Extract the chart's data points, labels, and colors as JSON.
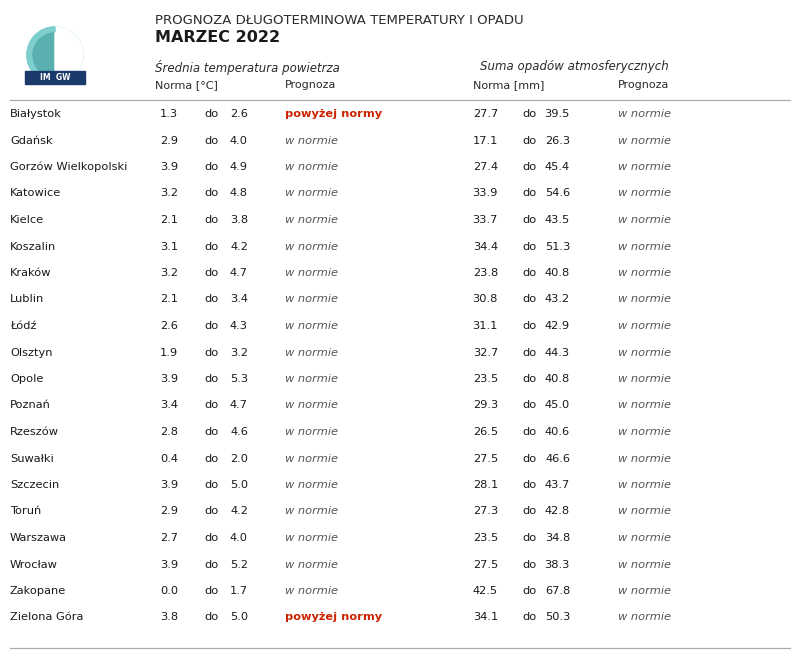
{
  "title_line1": "PROGNOZA DŁUGOTERMINOWA TEMPERATURY I OPADU",
  "title_line2": "MARZEC 2022",
  "header_temp": "Średnia temperatura powietrza",
  "header_precip": "Suma opadów atmosferycznych",
  "col_norma": "Norma [°C]",
  "col_prognoza": "Prognoza",
  "col_norma_mm": "Norma [mm]",
  "col_prognoza2": "Prognoza",
  "cities": [
    "Białystok",
    "Gdańsk",
    "Gorzów Wielkopolski",
    "Katowice",
    "Kielce",
    "Koszalin",
    "Kraków",
    "Lublin",
    "Łódź",
    "Olsztyn",
    "Opole",
    "Poznań",
    "Rzeszów",
    "Suwałki",
    "Szczecin",
    "Toruń",
    "Warszawa",
    "Wrocław",
    "Zakopane",
    "Zielona Góra"
  ],
  "temp_low": [
    1.3,
    2.9,
    3.9,
    3.2,
    2.1,
    3.1,
    3.2,
    2.1,
    2.6,
    1.9,
    3.9,
    3.4,
    2.8,
    0.4,
    3.9,
    2.9,
    2.7,
    3.9,
    0.0,
    3.8
  ],
  "temp_high": [
    2.6,
    4.0,
    4.9,
    4.8,
    3.8,
    4.2,
    4.7,
    3.4,
    4.3,
    3.2,
    5.3,
    4.7,
    4.6,
    2.0,
    5.0,
    4.2,
    4.0,
    5.2,
    1.7,
    5.0
  ],
  "temp_prognoza": [
    "powyżej normy",
    "w normie",
    "w normie",
    "w normie",
    "w normie",
    "w normie",
    "w normie",
    "w normie",
    "w normie",
    "w normie",
    "w normie",
    "w normie",
    "w normie",
    "w normie",
    "w normie",
    "w normie",
    "w normie",
    "w normie",
    "w normie",
    "powyżej normy"
  ],
  "precip_low": [
    27.7,
    17.1,
    27.4,
    33.9,
    33.7,
    34.4,
    23.8,
    30.8,
    31.1,
    32.7,
    23.5,
    29.3,
    26.5,
    27.5,
    28.1,
    27.3,
    23.5,
    27.5,
    42.5,
    34.1
  ],
  "precip_high": [
    39.5,
    26.3,
    45.4,
    54.6,
    43.5,
    51.3,
    40.8,
    43.2,
    42.9,
    44.3,
    40.8,
    45.0,
    40.6,
    46.6,
    43.7,
    42.8,
    34.8,
    38.3,
    67.8,
    50.3
  ],
  "precip_prognoza": [
    "w normie",
    "w normie",
    "w normie",
    "w normie",
    "w normie",
    "w normie",
    "w normie",
    "w normie",
    "w normie",
    "w normie",
    "w normie",
    "w normie",
    "w normie",
    "w normie",
    "w normie",
    "w normie",
    "w normie",
    "w normie",
    "w normie",
    "w normie"
  ],
  "color_normal": "#555555",
  "color_red": "#cc2200",
  "bg_color": "#ffffff",
  "logo_teal_outer": "#7ecece",
  "logo_teal_inner": "#5aafaf",
  "logo_navy": "#1a3a6b",
  "line_color": "#aaaaaa"
}
